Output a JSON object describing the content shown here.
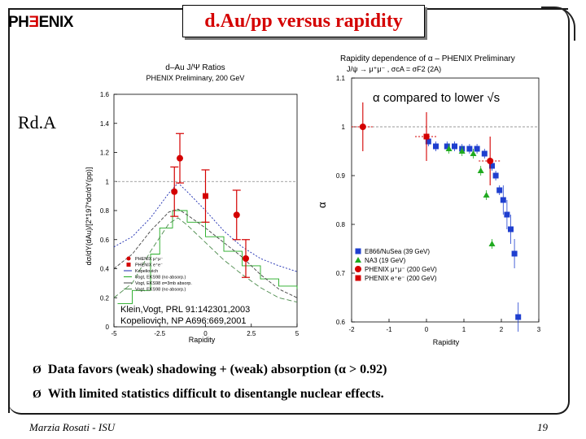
{
  "header": {
    "logo_left": "PH",
    "logo_mid": "ENIX",
    "title": "d.Au/pp versus rapidity"
  },
  "side_label": "Rd.A",
  "bullets": [
    "Data favors (weak) shadowing + (weak) absorption (α > 0.92)",
    "With limited statistics difficult to disentangle nuclear effects."
  ],
  "footer": {
    "author": "Marzia Rosati - ISU",
    "page": "19"
  },
  "chart_data": [
    {
      "type": "scatter",
      "title": "d–Au J/Ψ Ratios",
      "subtitle": "PHENIX Preliminary, 200 GeV",
      "xlabel": "Rapidity",
      "ylabel": "dσ/dY(dAu)/[2*197*dσ/dY(pp)]",
      "xlim": [
        -5,
        5
      ],
      "ylim": [
        0,
        1.6
      ],
      "xticks": [
        "-5",
        "-2.5",
        "0",
        "2.5",
        "5"
      ],
      "yticks": [
        "0",
        "0.2",
        "0.4",
        "0.6",
        "0.8",
        "1",
        "1.2",
        "1.4",
        "1.6"
      ],
      "legend": [
        "PHENIX μ⁺μ⁻",
        "PHENIX e⁺e⁻",
        "Kopeliovich",
        "Vogt, EKS98 (no absorp.)",
        "Vogt, EKS98 σ=3mb absorp.",
        "Vogt, EKS98 (no absorp.)"
      ],
      "series": [
        {
          "name": "PHENIX μ⁺μ⁻",
          "color": "#d40000",
          "marker": "circle",
          "x": [
            -1.7,
            1.7
          ],
          "y": [
            0.93,
            0.77
          ],
          "err": [
            0.17,
            0.17
          ]
        },
        {
          "name": "PHENIX μ⁺μ⁻",
          "color": "#d40000",
          "marker": "circle",
          "x": [
            -1.4,
            2.2
          ],
          "y": [
            1.16,
            0.47
          ],
          "err": [
            0.17,
            0.13
          ]
        },
        {
          "name": "PHENIX e⁺e⁻",
          "color": "#d40000",
          "marker": "square",
          "x": [
            0.0
          ],
          "y": [
            0.9
          ],
          "err": [
            0.18
          ]
        }
      ],
      "annotations": [
        "Klein,Vogt, PRL 91:142301,2003",
        "Kopeliovich, NP A696:669,2001"
      ]
    },
    {
      "type": "scatter",
      "title": "Rapidity dependence of α – PHENIX Preliminary",
      "subtitle": "J/ψ → μ⁺μ⁻ , σcA = σF2 (2A)",
      "annotation": "α compared to lower √s",
      "xlabel": "Rapidity",
      "ylabel": "α",
      "xlim": [
        -2,
        3
      ],
      "ylim": [
        0.6,
        1.1
      ],
      "xticks": [
        "-2",
        "-1",
        "0",
        "1",
        "2",
        "3"
      ],
      "yticks": [
        "0.6",
        "0.7",
        "0.8",
        "0.9",
        "1",
        "1.1"
      ],
      "series": [
        {
          "name": "E866/NuSea (39 GeV)",
          "color": "#1f3fcf",
          "marker": "square",
          "x": [
            0.05,
            0.25,
            0.55,
            0.75,
            0.95,
            1.15,
            1.35,
            1.55,
            1.75,
            1.85,
            1.95,
            2.05,
            2.15,
            2.25,
            2.35,
            2.45
          ],
          "y": [
            0.97,
            0.96,
            0.96,
            0.96,
            0.955,
            0.955,
            0.955,
            0.945,
            0.92,
            0.9,
            0.87,
            0.85,
            0.82,
            0.79,
            0.74,
            0.61
          ]
        },
        {
          "name": "NA3 (19 GeV)",
          "color": "#1faa1f",
          "marker": "triangle",
          "x": [
            0.6,
            0.95,
            1.25,
            1.45,
            1.6,
            1.75
          ],
          "y": [
            0.955,
            0.95,
            0.945,
            0.91,
            0.86,
            0.76
          ]
        },
        {
          "name": "PHENIX (200 GeV)",
          "color": "#d40000",
          "marker": "circle",
          "x": [
            -1.7,
            1.7
          ],
          "y": [
            1.0,
            0.93
          ]
        },
        {
          "name": "PHENIX (200 GeV)",
          "color": "#d40000",
          "marker": "square",
          "x": [
            0.0
          ],
          "y": [
            0.98
          ]
        }
      ],
      "legend": [
        "E866/NuSea (39 GeV)",
        "NA3 (19 GeV)",
        "PHENIX μ⁺μ⁻ (200 GeV)",
        "PHENIX e⁺e⁻ (200 GeV)"
      ]
    }
  ]
}
